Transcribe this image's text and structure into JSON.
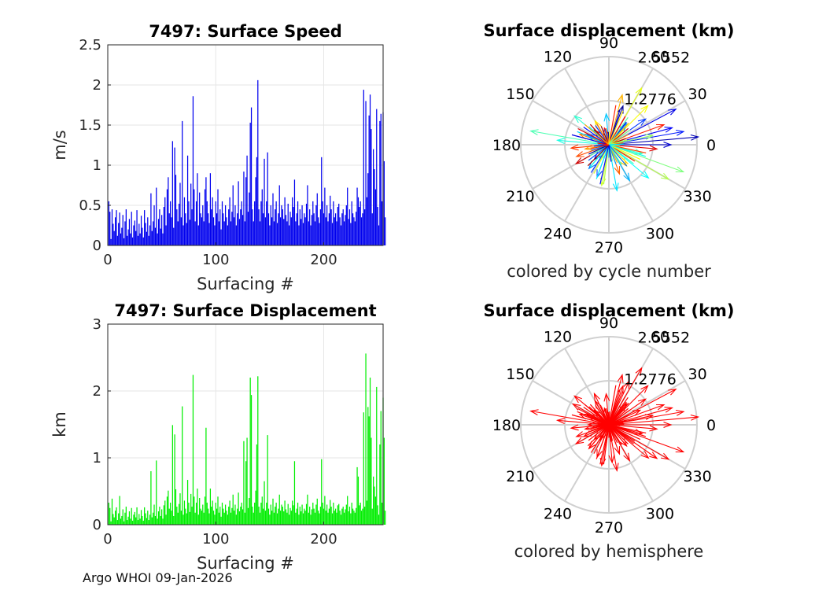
{
  "footer": "Argo WHOI 09-Jan-2026",
  "chart_data": [
    {
      "type": "bar",
      "title": "7497: Surface Speed",
      "xlabel": "Surfacing #",
      "ylabel": "m/s",
      "xlim": [
        0,
        255
      ],
      "ylim": [
        0,
        2.5
      ],
      "xticks": [
        0,
        100,
        200
      ],
      "yticks": [
        0,
        0.5,
        1,
        1.5,
        2,
        2.5
      ],
      "ytick_labels": [
        "0",
        "0.5",
        "1",
        "1.5",
        "2",
        "2.5"
      ],
      "color": "#0000ee",
      "values": [
        0.55,
        0.42,
        0.08,
        0.45,
        0.27,
        0.18,
        0.35,
        0.44,
        0.12,
        0.28,
        0.41,
        0.15,
        0.22,
        0.38,
        0.09,
        0.3,
        0.45,
        0.12,
        0.2,
        0.33,
        0.15,
        0.42,
        0.1,
        0.25,
        0.31,
        0.18,
        0.44,
        0.12,
        0.27,
        0.15,
        0.37,
        0.22,
        0.1,
        0.44,
        0.28,
        0.17,
        0.35,
        0.12,
        0.25,
        0.65,
        0.18,
        0.3,
        0.5,
        0.22,
        0.72,
        0.15,
        0.33,
        0.45,
        0.21,
        0.38,
        0.15,
        0.48,
        0.6,
        0.25,
        0.7,
        0.85,
        0.4,
        0.55,
        0.35,
        1.3,
        0.22,
        1.22,
        0.88,
        0.45,
        0.3,
        0.52,
        0.78,
        0.35,
        1.55,
        0.25,
        0.6,
        0.4,
        0.28,
        1.12,
        0.55,
        0.32,
        0.77,
        0.45,
        1.86,
        0.7,
        0.3,
        0.55,
        0.9,
        0.25,
        0.66,
        0.4,
        0.35,
        0.5,
        0.3,
        0.7,
        0.85,
        0.55,
        0.4,
        0.28,
        0.9,
        0.45,
        0.6,
        0.35,
        0.25,
        0.55,
        0.4,
        0.7,
        0.3,
        0.45,
        0.2,
        0.55,
        0.4,
        0.3,
        0.5,
        0.35,
        0.25,
        0.45,
        0.6,
        0.3,
        0.42,
        0.75,
        0.35,
        0.5,
        0.25,
        0.4,
        0.8,
        0.33,
        0.45,
        0.55,
        0.38,
        0.92,
        0.3,
        0.85,
        1.12,
        0.42,
        0.66,
        1.53,
        1.72,
        0.45,
        0.3,
        0.55,
        0.85,
        1.1,
        2.06,
        0.45,
        0.3,
        0.55,
        0.7,
        0.4,
        1.08,
        0.35,
        0.55,
        1.16,
        0.4,
        0.25,
        0.5,
        0.35,
        0.65,
        0.3,
        0.45,
        0.55,
        0.28,
        0.4,
        0.75,
        0.35,
        0.5,
        0.45,
        0.33,
        0.6,
        0.38,
        0.3,
        0.52,
        0.25,
        0.42,
        0.35,
        0.6,
        0.48,
        0.82,
        0.3,
        0.4,
        0.55,
        0.25,
        0.45,
        0.33,
        0.5,
        0.28,
        0.4,
        0.35,
        0.52,
        0.75,
        0.3,
        0.45,
        0.25,
        0.38,
        0.55,
        0.4,
        0.3,
        0.5,
        0.65,
        0.35,
        0.28,
        0.45,
        1.1,
        0.55,
        0.4,
        0.72,
        0.35,
        0.5,
        0.3,
        0.4,
        0.62,
        0.45,
        0.28,
        0.55,
        0.35,
        0.4,
        0.3,
        0.48,
        0.52,
        0.35,
        0.25,
        0.4,
        0.45,
        0.3,
        0.38,
        0.5,
        0.72,
        0.33,
        0.45,
        0.28,
        0.55,
        0.4,
        0.35,
        0.3,
        0.42,
        0.72,
        0.6,
        0.48,
        0.55,
        0.35,
        0.4,
        1.94,
        0.45,
        1.8,
        0.6,
        0.9,
        1.62,
        1.88,
        1.45,
        0.4,
        1.2,
        0.95,
        0.7,
        1.7,
        0.48,
        0.25,
        1.55,
        1.64,
        0.55,
        1.66,
        1.05,
        0.35
      ]
    },
    {
      "type": "bar",
      "title": "7497: Surface Displacement",
      "xlabel": "Surfacing #",
      "ylabel": "km",
      "xlim": [
        0,
        255
      ],
      "ylim": [
        0,
        3
      ],
      "xticks": [
        0,
        100,
        200
      ],
      "yticks": [
        0,
        1,
        2,
        3
      ],
      "ytick_labels": [
        "0",
        "1",
        "2",
        "3"
      ],
      "color": "#00ee00",
      "values": [
        0.33,
        0.25,
        0.05,
        0.39,
        0.16,
        0.11,
        0.21,
        0.26,
        0.07,
        0.17,
        0.43,
        0.09,
        0.13,
        0.23,
        0.05,
        0.18,
        0.27,
        0.07,
        0.12,
        0.2,
        0.09,
        0.25,
        0.06,
        0.15,
        0.19,
        0.11,
        0.26,
        0.07,
        0.16,
        0.09,
        0.22,
        0.13,
        0.06,
        0.26,
        0.17,
        0.1,
        0.21,
        0.07,
        0.15,
        0.8,
        0.11,
        0.18,
        0.3,
        0.13,
        0.96,
        0.09,
        0.2,
        0.27,
        0.13,
        0.23,
        0.09,
        0.29,
        0.36,
        0.15,
        0.42,
        0.51,
        0.24,
        0.33,
        0.21,
        1.49,
        0.13,
        1.35,
        0.53,
        0.27,
        0.18,
        0.31,
        0.47,
        0.21,
        1.77,
        0.15,
        0.36,
        0.24,
        0.17,
        0.67,
        0.33,
        0.19,
        0.46,
        0.27,
        2.24,
        0.42,
        0.18,
        0.33,
        0.54,
        0.15,
        0.4,
        0.24,
        0.21,
        0.3,
        0.18,
        0.42,
        1.45,
        0.33,
        0.24,
        0.17,
        0.54,
        0.27,
        0.36,
        0.21,
        0.15,
        0.33,
        0.24,
        0.42,
        0.18,
        0.27,
        0.12,
        0.33,
        0.24,
        0.18,
        0.3,
        0.21,
        0.15,
        0.27,
        0.36,
        0.18,
        0.25,
        0.45,
        0.21,
        0.3,
        0.15,
        0.24,
        0.48,
        0.2,
        0.27,
        0.33,
        0.23,
        1.25,
        0.18,
        0.95,
        1.3,
        0.25,
        0.4,
        2.2,
        1.94,
        0.27,
        0.18,
        0.33,
        0.51,
        1.2,
        2.22,
        0.27,
        0.18,
        0.33,
        0.42,
        0.24,
        0.65,
        0.21,
        0.33,
        1.34,
        0.24,
        0.15,
        0.3,
        0.21,
        0.39,
        0.18,
        0.27,
        0.33,
        0.17,
        0.24,
        0.45,
        0.21,
        0.3,
        0.27,
        0.2,
        0.36,
        0.23,
        0.18,
        0.31,
        0.15,
        0.25,
        0.21,
        0.36,
        0.29,
        0.95,
        0.18,
        0.24,
        0.33,
        0.15,
        0.27,
        0.2,
        0.3,
        0.17,
        0.24,
        0.21,
        0.31,
        0.45,
        0.18,
        0.27,
        0.15,
        0.23,
        0.33,
        0.24,
        0.18,
        0.3,
        0.39,
        0.21,
        0.17,
        0.27,
        0.98,
        0.33,
        0.24,
        0.43,
        0.21,
        0.3,
        0.18,
        0.24,
        0.37,
        0.27,
        0.17,
        0.33,
        0.21,
        0.24,
        0.18,
        0.29,
        0.31,
        0.21,
        0.15,
        0.24,
        0.27,
        0.18,
        0.23,
        0.3,
        0.43,
        0.2,
        0.27,
        0.17,
        0.33,
        0.24,
        0.21,
        0.18,
        0.25,
        0.86,
        0.72,
        0.29,
        0.33,
        0.21,
        0.24,
        1.68,
        0.27,
        2.56,
        0.36,
        1.76,
        1.62,
        2.2,
        1.3,
        0.24,
        0.72,
        0.57,
        0.42,
        2.06,
        0.29,
        0.15,
        1.2,
        1.7,
        0.33,
        1.9,
        1.3,
        0.21
      ]
    },
    {
      "type": "polar",
      "title": "Surface displacement (km)",
      "xlabel": "colored by cycle number",
      "rticks": [
        1.2776,
        2.5552
      ],
      "rtick_labels": [
        "1.2776",
        "2.5552"
      ],
      "angle_ticks": [
        0,
        30,
        60,
        90,
        120,
        150,
        180,
        210,
        240,
        270,
        300,
        330
      ],
      "angle_tick_labels": [
        "0",
        "30",
        "60",
        "90",
        "120",
        "150",
        "180",
        "210",
        "240",
        "270",
        "300",
        "330"
      ],
      "rlim": [
        0,
        2.5552
      ],
      "coloring": "jet colormap by cycle index",
      "palette": [
        "#00008f",
        "#0000ff",
        "#0080ff",
        "#00ffff",
        "#80ff80",
        "#ffff00",
        "#ff8000",
        "#ff0000",
        "#800000"
      ],
      "arrows": [
        {
          "angle": 5,
          "r": 2.6,
          "c": 0.05
        },
        {
          "angle": 28,
          "r": 2.2,
          "c": 0.1
        },
        {
          "angle": 60,
          "r": 1.9,
          "c": 0.6
        },
        {
          "angle": 10,
          "r": 2.2,
          "c": 0.15
        },
        {
          "angle": 170,
          "r": 2.3,
          "c": 0.45
        },
        {
          "angle": 340,
          "r": 2.3,
          "c": 0.5
        },
        {
          "angle": 330,
          "r": 2.0,
          "c": 0.55
        },
        {
          "angle": 15,
          "r": 1.9,
          "c": 0.12
        },
        {
          "angle": 75,
          "r": 1.5,
          "c": 0.7
        },
        {
          "angle": 140,
          "r": 1.3,
          "c": 0.42
        },
        {
          "angle": 175,
          "r": 1.5,
          "c": 0.4
        },
        {
          "angle": 200,
          "r": 1.0,
          "c": 0.8
        },
        {
          "angle": 280,
          "r": 1.35,
          "c": 0.35
        },
        {
          "angle": 300,
          "r": 1.2,
          "c": 0.3
        },
        {
          "angle": 45,
          "r": 1.6,
          "c": 0.62
        },
        {
          "angle": 20,
          "r": 1.7,
          "c": 0.85
        },
        {
          "angle": 355,
          "r": 1.4,
          "c": 0.9
        },
        {
          "angle": 250,
          "r": 1.0,
          "c": 0.2
        },
        {
          "angle": 230,
          "r": 0.9,
          "c": 0.25
        },
        {
          "angle": 120,
          "r": 0.8,
          "c": 0.65
        },
        {
          "angle": 160,
          "r": 0.9,
          "c": 0.75
        },
        {
          "angle": 260,
          "r": 1.2,
          "c": 0.58
        },
        {
          "angle": 210,
          "r": 1.1,
          "c": 0.92
        },
        {
          "angle": 35,
          "r": 1.3,
          "c": 0.18
        },
        {
          "angle": 95,
          "r": 0.9,
          "c": 0.32
        },
        {
          "angle": 190,
          "r": 0.7,
          "c": 0.72
        },
        {
          "angle": 310,
          "r": 0.8,
          "c": 0.68
        },
        {
          "angle": 0,
          "r": 1.8,
          "c": 0.08
        },
        {
          "angle": 12,
          "r": 1.3,
          "c": 0.52
        },
        {
          "angle": 345,
          "r": 1.0,
          "c": 0.44
        },
        {
          "angle": 135,
          "r": 0.6,
          "c": 0.95
        },
        {
          "angle": 225,
          "r": 0.6,
          "c": 0.1
        },
        {
          "angle": 290,
          "r": 0.9,
          "c": 0.78
        },
        {
          "angle": 70,
          "r": 1.2,
          "c": 0.02
        },
        {
          "angle": 155,
          "r": 0.7,
          "c": 0.22
        },
        {
          "angle": 185,
          "r": 1.1,
          "c": 0.82
        },
        {
          "angle": 320,
          "r": 1.5,
          "c": 0.38
        },
        {
          "angle": 240,
          "r": 0.5,
          "c": 0.48
        },
        {
          "angle": 105,
          "r": 0.5,
          "c": 0.88
        },
        {
          "angle": 50,
          "r": 0.8,
          "c": 0.28
        }
      ]
    },
    {
      "type": "polar",
      "title": "Surface displacement (km)",
      "xlabel": "colored by hemisphere",
      "rticks": [
        1.2776,
        2.5552
      ],
      "rtick_labels": [
        "1.2776",
        "2.5552"
      ],
      "angle_ticks": [
        0,
        30,
        60,
        90,
        120,
        150,
        180,
        210,
        240,
        270,
        300,
        330
      ],
      "angle_tick_labels": [
        "0",
        "30",
        "60",
        "90",
        "120",
        "150",
        "180",
        "210",
        "240",
        "270",
        "300",
        "330"
      ],
      "rlim": [
        0,
        2.5552
      ],
      "color": "#ff0000",
      "arrows": [
        {
          "angle": 5,
          "r": 2.6
        },
        {
          "angle": 28,
          "r": 2.2
        },
        {
          "angle": 60,
          "r": 1.9
        },
        {
          "angle": 10,
          "r": 2.2
        },
        {
          "angle": 170,
          "r": 2.3
        },
        {
          "angle": 340,
          "r": 2.3
        },
        {
          "angle": 330,
          "r": 2.0
        },
        {
          "angle": 15,
          "r": 1.9
        },
        {
          "angle": 75,
          "r": 1.5
        },
        {
          "angle": 140,
          "r": 1.3
        },
        {
          "angle": 175,
          "r": 1.5
        },
        {
          "angle": 200,
          "r": 1.0
        },
        {
          "angle": 280,
          "r": 1.35
        },
        {
          "angle": 300,
          "r": 1.2
        },
        {
          "angle": 45,
          "r": 1.6
        },
        {
          "angle": 20,
          "r": 1.7
        },
        {
          "angle": 355,
          "r": 1.4
        },
        {
          "angle": 250,
          "r": 1.0
        },
        {
          "angle": 230,
          "r": 0.9
        },
        {
          "angle": 120,
          "r": 0.8
        },
        {
          "angle": 160,
          "r": 0.9
        },
        {
          "angle": 260,
          "r": 1.2
        },
        {
          "angle": 210,
          "r": 1.1
        },
        {
          "angle": 35,
          "r": 1.3
        },
        {
          "angle": 95,
          "r": 0.9
        },
        {
          "angle": 190,
          "r": 0.7
        },
        {
          "angle": 310,
          "r": 0.8
        },
        {
          "angle": 0,
          "r": 1.8
        },
        {
          "angle": 12,
          "r": 1.3
        },
        {
          "angle": 345,
          "r": 1.0
        },
        {
          "angle": 135,
          "r": 0.6
        },
        {
          "angle": 225,
          "r": 0.6
        },
        {
          "angle": 290,
          "r": 0.9
        },
        {
          "angle": 70,
          "r": 1.2
        },
        {
          "angle": 155,
          "r": 0.7
        },
        {
          "angle": 185,
          "r": 1.1
        },
        {
          "angle": 320,
          "r": 1.5
        },
        {
          "angle": 240,
          "r": 0.5
        },
        {
          "angle": 105,
          "r": 0.5
        },
        {
          "angle": 50,
          "r": 0.8
        },
        {
          "angle": 150,
          "r": 1.2
        },
        {
          "angle": 115,
          "r": 1.0
        },
        {
          "angle": 65,
          "r": 1.4
        },
        {
          "angle": 205,
          "r": 0.8
        },
        {
          "angle": 275,
          "r": 1.1
        },
        {
          "angle": 325,
          "r": 1.7
        },
        {
          "angle": 25,
          "r": 1.0
        },
        {
          "angle": 180,
          "r": 0.6
        }
      ]
    }
  ]
}
